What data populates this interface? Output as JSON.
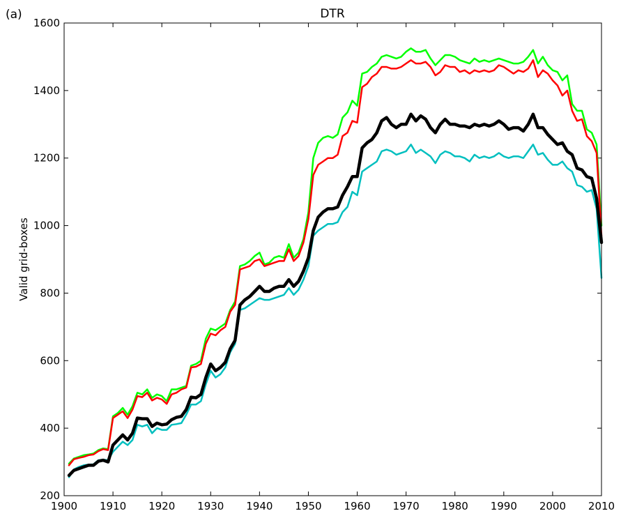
{
  "chart_data": {
    "type": "line",
    "panel_label": "(a)",
    "title": "DTR",
    "xlabel": "",
    "ylabel": "Valid grid-boxes",
    "xlim": [
      1900,
      2010
    ],
    "ylim": [
      200,
      1600
    ],
    "xticks": [
      1900,
      1910,
      1920,
      1930,
      1940,
      1950,
      1960,
      1970,
      1980,
      1990,
      2000,
      2010
    ],
    "yticks": [
      200,
      400,
      600,
      800,
      1000,
      1200,
      1400,
      1600
    ],
    "grid": false,
    "legend": "none",
    "x": [
      1901,
      1902,
      1903,
      1904,
      1905,
      1906,
      1907,
      1908,
      1909,
      1910,
      1911,
      1912,
      1913,
      1914,
      1915,
      1916,
      1917,
      1918,
      1919,
      1920,
      1921,
      1922,
      1923,
      1924,
      1925,
      1926,
      1927,
      1928,
      1929,
      1930,
      1931,
      1932,
      1933,
      1934,
      1935,
      1936,
      1937,
      1938,
      1939,
      1940,
      1941,
      1942,
      1943,
      1944,
      1945,
      1946,
      1947,
      1948,
      1949,
      1950,
      1951,
      1952,
      1953,
      1954,
      1955,
      1956,
      1957,
      1958,
      1959,
      1960,
      1961,
      1962,
      1963,
      1964,
      1965,
      1966,
      1967,
      1968,
      1969,
      1970,
      1971,
      1972,
      1973,
      1974,
      1975,
      1976,
      1977,
      1978,
      1979,
      1980,
      1981,
      1982,
      1983,
      1984,
      1985,
      1986,
      1987,
      1988,
      1989,
      1990,
      1991,
      1992,
      1993,
      1994,
      1995,
      1996,
      1997,
      1998,
      1999,
      2000,
      2001,
      2002,
      2003,
      2004,
      2005,
      2006,
      2007,
      2008,
      2009,
      2010
    ],
    "series": [
      {
        "color": "#00ff00",
        "width": 2.5,
        "values": [
          295,
          310,
          315,
          320,
          322,
          325,
          335,
          340,
          338,
          435,
          445,
          460,
          440,
          465,
          505,
          500,
          515,
          490,
          500,
          495,
          480,
          515,
          515,
          520,
          525,
          585,
          590,
          600,
          665,
          695,
          690,
          700,
          710,
          750,
          775,
          880,
          885,
          895,
          910,
          920,
          885,
          890,
          905,
          910,
          905,
          945,
          905,
          920,
          960,
          1040,
          1200,
          1245,
          1260,
          1265,
          1260,
          1270,
          1320,
          1335,
          1370,
          1355,
          1450,
          1455,
          1470,
          1480,
          1500,
          1505,
          1500,
          1495,
          1500,
          1515,
          1525,
          1515,
          1515,
          1520,
          1495,
          1475,
          1490,
          1505,
          1505,
          1500,
          1490,
          1485,
          1480,
          1495,
          1485,
          1490,
          1485,
          1490,
          1495,
          1490,
          1485,
          1480,
          1480,
          1485,
          1500,
          1520,
          1480,
          1500,
          1475,
          1460,
          1455,
          1430,
          1445,
          1360,
          1340,
          1340,
          1285,
          1275,
          1240,
          1000
        ]
      },
      {
        "color": "#ff0000",
        "width": 2.5,
        "values": [
          290,
          308,
          312,
          315,
          320,
          322,
          332,
          338,
          335,
          430,
          440,
          450,
          430,
          455,
          495,
          492,
          505,
          482,
          490,
          485,
          472,
          500,
          505,
          515,
          520,
          580,
          582,
          590,
          650,
          680,
          675,
          690,
          700,
          745,
          765,
          870,
          875,
          880,
          895,
          900,
          880,
          885,
          890,
          895,
          895,
          930,
          895,
          910,
          950,
          1020,
          1150,
          1180,
          1190,
          1200,
          1200,
          1210,
          1265,
          1275,
          1310,
          1305,
          1410,
          1420,
          1440,
          1450,
          1470,
          1470,
          1465,
          1465,
          1470,
          1480,
          1490,
          1480,
          1480,
          1485,
          1470,
          1445,
          1455,
          1475,
          1470,
          1470,
          1455,
          1460,
          1450,
          1460,
          1455,
          1460,
          1455,
          1460,
          1475,
          1470,
          1460,
          1450,
          1460,
          1455,
          1465,
          1490,
          1440,
          1460,
          1450,
          1430,
          1415,
          1385,
          1400,
          1340,
          1310,
          1315,
          1265,
          1250,
          1215,
          970
        ]
      },
      {
        "color": "#00bfbf",
        "width": 2.5,
        "values": [
          255,
          278,
          285,
          290,
          292,
          293,
          305,
          307,
          305,
          330,
          345,
          360,
          350,
          365,
          410,
          405,
          410,
          385,
          400,
          395,
          395,
          410,
          412,
          415,
          440,
          470,
          470,
          480,
          530,
          570,
          550,
          560,
          580,
          625,
          650,
          750,
          755,
          765,
          775,
          785,
          780,
          780,
          785,
          790,
          795,
          815,
          795,
          810,
          840,
          880,
          970,
          985,
          995,
          1005,
          1005,
          1010,
          1040,
          1055,
          1100,
          1090,
          1160,
          1170,
          1180,
          1190,
          1220,
          1225,
          1220,
          1210,
          1215,
          1220,
          1240,
          1215,
          1225,
          1215,
          1205,
          1185,
          1210,
          1220,
          1215,
          1205,
          1205,
          1200,
          1190,
          1210,
          1200,
          1205,
          1200,
          1205,
          1215,
          1205,
          1200,
          1205,
          1205,
          1200,
          1220,
          1240,
          1210,
          1215,
          1195,
          1180,
          1180,
          1190,
          1170,
          1160,
          1120,
          1115,
          1100,
          1105,
          1050,
          845
        ]
      },
      {
        "color": "#000000",
        "width": 4.5,
        "values": [
          260,
          275,
          280,
          285,
          290,
          290,
          302,
          305,
          300,
          350,
          365,
          380,
          365,
          385,
          430,
          428,
          428,
          405,
          415,
          410,
          412,
          425,
          432,
          435,
          455,
          492,
          490,
          500,
          550,
          590,
          570,
          580,
          595,
          635,
          660,
          765,
          780,
          790,
          805,
          820,
          805,
          805,
          815,
          820,
          820,
          840,
          820,
          835,
          865,
          905,
          985,
          1025,
          1040,
          1050,
          1050,
          1055,
          1090,
          1115,
          1145,
          1145,
          1230,
          1245,
          1255,
          1275,
          1310,
          1320,
          1300,
          1290,
          1300,
          1300,
          1330,
          1310,
          1325,
          1315,
          1290,
          1275,
          1300,
          1315,
          1300,
          1300,
          1295,
          1295,
          1290,
          1300,
          1295,
          1300,
          1295,
          1300,
          1310,
          1300,
          1285,
          1290,
          1290,
          1280,
          1300,
          1330,
          1290,
          1290,
          1270,
          1255,
          1240,
          1245,
          1220,
          1210,
          1170,
          1165,
          1145,
          1140,
          1080,
          950
        ]
      }
    ]
  }
}
